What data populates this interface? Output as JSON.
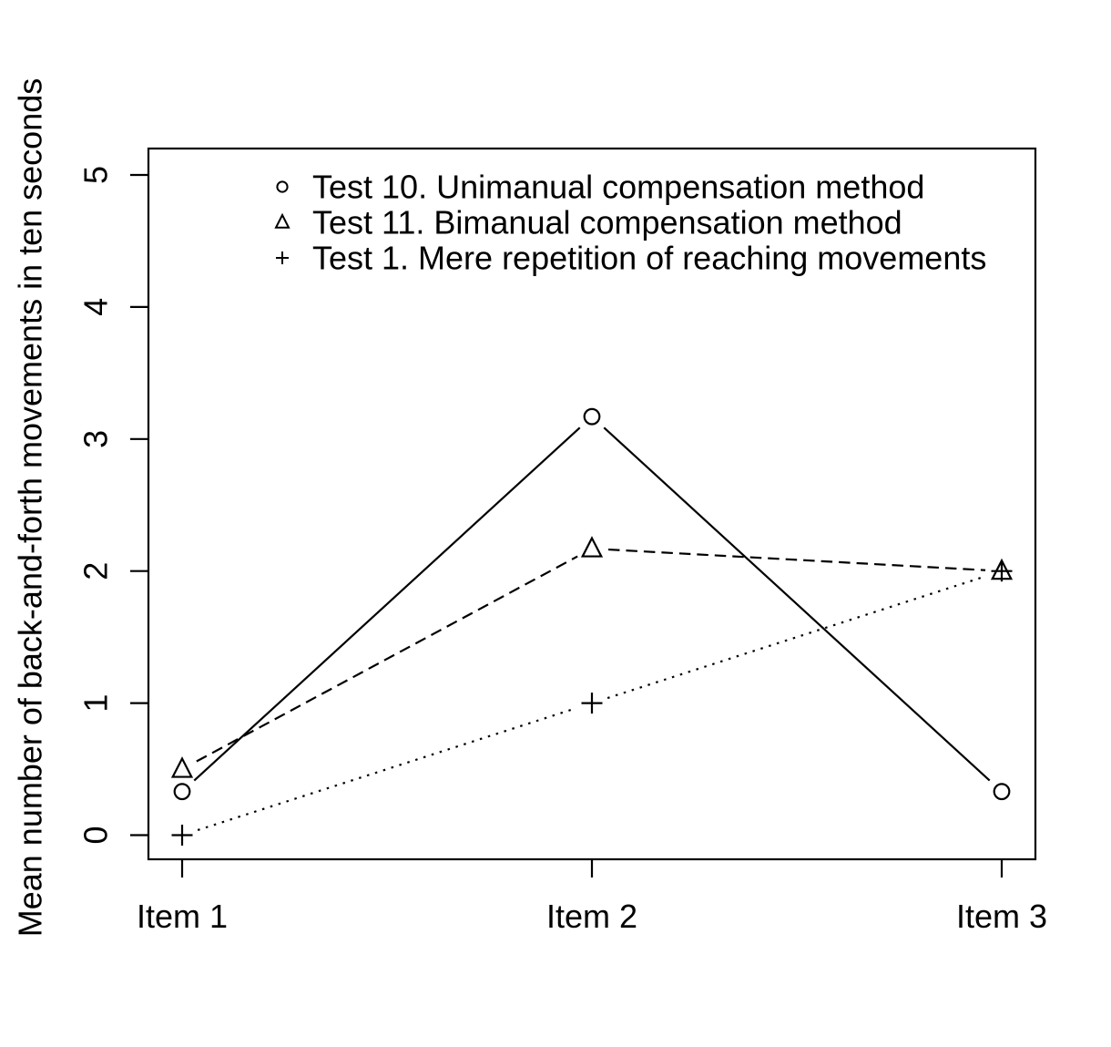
{
  "chart_data": {
    "type": "line",
    "title": "",
    "xlabel": "",
    "ylabel": "Mean number of back-and-forth movements in ten seconds",
    "categories": [
      "Item 1",
      "Item 2",
      "Item 3"
    ],
    "series": [
      {
        "name": "Test 10. Unimanual compensation method",
        "marker": "circle",
        "line_style": "solid",
        "values": [
          0.33,
          3.17,
          0.33
        ]
      },
      {
        "name": "Test 11. Bimanual compensation method",
        "marker": "triangle",
        "line_style": "dashed",
        "values": [
          0.5,
          2.17,
          2.0
        ]
      },
      {
        "name": "Test 1. Mere repetition of reaching movements",
        "marker": "plus",
        "line_style": "dotted",
        "values": [
          0.0,
          1.0,
          2.0
        ]
      }
    ],
    "ylim": [
      0,
      5
    ],
    "yticks": [
      0,
      1,
      2,
      3,
      4,
      5
    ],
    "grid": false,
    "legend_position": "top-left-inside",
    "legend_has_border": false,
    "ink_color": "#000000",
    "background_color": "#ffffff"
  }
}
